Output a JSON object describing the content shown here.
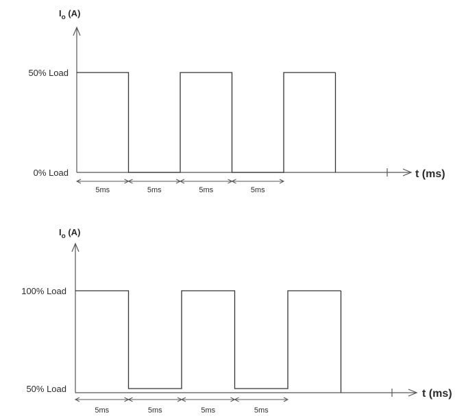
{
  "chart_data": [
    {
      "type": "line",
      "title": "",
      "ylabel": "I",
      "ylabel_sub": "o",
      "ylabel_unit": "(A)",
      "xlabel": "t (ms)",
      "y_levels": [
        "0% Load",
        "50% Load"
      ],
      "series": [
        {
          "x": [
            0,
            5,
            5,
            10,
            10,
            15,
            15,
            20,
            20,
            25
          ],
          "y": [
            "50% Load",
            "50% Load",
            "0% Load",
            "0% Load",
            "50% Load",
            "50% Load",
            "0% Load",
            "0% Load",
            "50% Load",
            "50% Load"
          ]
        }
      ],
      "durations": [
        "5ms",
        "5ms",
        "5ms",
        "5ms"
      ]
    },
    {
      "type": "line",
      "title": "",
      "ylabel": "I",
      "ylabel_sub": "o",
      "ylabel_unit": "(A)",
      "xlabel": "t (ms)",
      "y_levels": [
        "50% Load",
        "100% Load"
      ],
      "series": [
        {
          "x": [
            0,
            5,
            5,
            10,
            10,
            15,
            15,
            20,
            20,
            25
          ],
          "y": [
            "100% Load",
            "100% Load",
            "50% Load",
            "50% Load",
            "100% Load",
            "100% Load",
            "50% Load",
            "50% Load",
            "100% Load",
            "100% Load"
          ]
        }
      ],
      "durations": [
        "5ms",
        "5ms",
        "5ms",
        "5ms"
      ]
    }
  ]
}
